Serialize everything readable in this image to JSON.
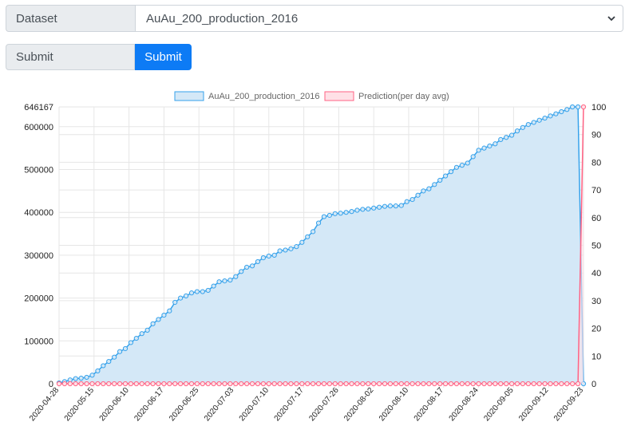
{
  "form": {
    "dataset_label": "Dataset",
    "dataset_value": "AuAu_200_production_2016",
    "submit_label": "Submit",
    "submit_button": "Submit",
    "button_color": "#1a7cf4"
  },
  "chart_data": {
    "type": "line",
    "title": "",
    "legend_position": "top-center",
    "grid": true,
    "x_tick_labels": [
      "2020-04-28",
      "2020-05-15",
      "2020-06-10",
      "2020-06-17",
      "2020-06-25",
      "2020-07-03",
      "2020-07-10",
      "2020-07-17",
      "2020-07-26",
      "2020-08-02",
      "2020-08-10",
      "2020-08-17",
      "2020-08-24",
      "2020-09-05",
      "2020-09-12",
      "2020-09-23"
    ],
    "y_left": {
      "ticks": [
        0,
        100000,
        200000,
        300000,
        400000,
        500000,
        600000,
        646167
      ],
      "range": [
        0,
        646167
      ]
    },
    "y_right": {
      "ticks": [
        0,
        10,
        20,
        30,
        40,
        50,
        60,
        70,
        80,
        90,
        100
      ],
      "range": [
        0,
        100
      ]
    },
    "series": [
      {
        "name": "AuAu_200_production_2016",
        "color": "#36a2eb",
        "fill": "#d4e8f7",
        "axis": "left",
        "values": [
          2000,
          5000,
          9000,
          12000,
          13000,
          15000,
          20000,
          30000,
          42000,
          52000,
          62000,
          75000,
          82000,
          96000,
          106000,
          117000,
          125000,
          140000,
          150000,
          160000,
          170000,
          190000,
          200000,
          205000,
          212000,
          215000,
          215000,
          218000,
          228000,
          238000,
          240000,
          242000,
          250000,
          262000,
          272000,
          275000,
          285000,
          294000,
          298000,
          300000,
          310000,
          312000,
          315000,
          320000,
          330000,
          343000,
          355000,
          375000,
          390000,
          393000,
          397000,
          398000,
          400000,
          402000,
          405000,
          407000,
          408000,
          410000,
          412000,
          414000,
          415000,
          415000,
          416000,
          425000,
          430000,
          440000,
          450000,
          455000,
          465000,
          475000,
          485000,
          495000,
          505000,
          510000,
          515000,
          530000,
          545000,
          550000,
          555000,
          560000,
          570000,
          575000,
          580000,
          590000,
          598000,
          605000,
          610000,
          615000,
          620000,
          625000,
          630000,
          635000,
          640000,
          646167,
          646167,
          0
        ]
      },
      {
        "name": "Prediction(per day avg)",
        "color": "#ff6384",
        "fill": "#ffe0e6",
        "axis": "right",
        "values_note": "",
        "values": [
          0,
          0,
          0,
          0,
          0,
          0,
          0,
          0,
          0,
          0,
          0,
          0,
          0,
          0,
          0,
          0,
          0,
          0,
          0,
          0,
          0,
          0,
          0,
          0,
          0,
          0,
          0,
          0,
          0,
          0,
          0,
          0,
          0,
          0,
          0,
          0,
          0,
          0,
          0,
          0,
          0,
          0,
          0,
          0,
          0,
          0,
          0,
          0,
          0,
          0,
          0,
          0,
          0,
          0,
          0,
          0,
          0,
          0,
          0,
          0,
          0,
          0,
          0,
          0,
          0,
          0,
          0,
          0,
          0,
          0,
          0,
          0,
          0,
          0,
          0,
          0,
          0,
          0,
          0,
          0,
          0,
          0,
          0,
          0,
          0,
          0,
          0,
          0,
          0,
          0,
          0,
          0,
          0,
          0,
          0,
          100
        ]
      }
    ]
  }
}
